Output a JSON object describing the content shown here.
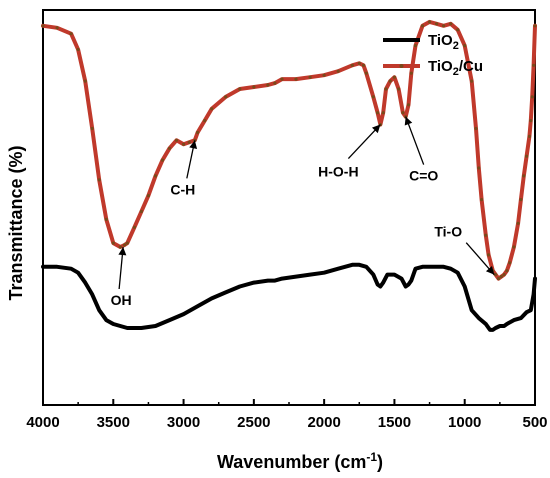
{
  "chart_data": {
    "type": "line",
    "xlabel": "Wavenumber (cm",
    "xlabel_sup": "-1",
    "xlabel_close": ")",
    "ylabel": "Transmittance (%)",
    "xlim": [
      4000,
      500
    ],
    "x_reversed": true,
    "y_ticks_shown": false,
    "xticks": [
      4000,
      3500,
      3000,
      2500,
      2000,
      1500,
      1000,
      500
    ],
    "xtick_labels": [
      "4000",
      "3500",
      "3000",
      "2500",
      "2000",
      "1500",
      "1000",
      "500"
    ],
    "grid": false,
    "legend_position": "top-right",
    "series": [
      {
        "name": "TiO",
        "name_sub": "2",
        "name_suffix": "",
        "color": "#000000",
        "marker_color": "#000000",
        "x": [
          4000,
          3900,
          3800,
          3750,
          3700,
          3650,
          3600,
          3550,
          3500,
          3450,
          3400,
          3300,
          3200,
          3100,
          3000,
          2900,
          2800,
          2700,
          2600,
          2500,
          2400,
          2350,
          2300,
          2200,
          2100,
          2000,
          1900,
          1800,
          1750,
          1700,
          1650,
          1620,
          1600,
          1580,
          1550,
          1500,
          1450,
          1420,
          1400,
          1380,
          1350,
          1300,
          1250,
          1200,
          1150,
          1100,
          1050,
          1000,
          950,
          900,
          850,
          820,
          800,
          780,
          750,
          720,
          700,
          650,
          600,
          560,
          530,
          510,
          500
        ],
        "y": [
          35,
          35,
          34.5,
          33.5,
          31,
          28,
          24,
          21.5,
          20.5,
          20,
          19.5,
          19.5,
          20,
          21.5,
          23,
          25,
          27,
          28.5,
          30,
          31,
          31.5,
          31.5,
          32,
          32.5,
          33,
          33.5,
          34.5,
          35.5,
          35.5,
          35,
          33,
          30.5,
          30,
          31,
          33,
          33,
          32,
          30,
          30.5,
          31.5,
          34.5,
          35,
          35,
          35,
          35,
          34.5,
          33.5,
          30,
          24,
          22,
          20.5,
          19,
          19,
          19.5,
          20,
          20,
          20.5,
          21.5,
          22,
          23.5,
          24,
          28,
          32
        ]
      },
      {
        "name": "TiO",
        "name_sub": "2",
        "name_suffix": "/Cu",
        "color": "#c0392b",
        "marker_color": "#7a4a1a",
        "x": [
          4000,
          3900,
          3800,
          3750,
          3700,
          3650,
          3600,
          3550,
          3500,
          3450,
          3420,
          3400,
          3350,
          3300,
          3250,
          3200,
          3150,
          3100,
          3050,
          3000,
          2960,
          2920,
          2900,
          2850,
          2800,
          2700,
          2600,
          2500,
          2400,
          2350,
          2300,
          2200,
          2100,
          2000,
          1900,
          1800,
          1750,
          1720,
          1700,
          1650,
          1620,
          1600,
          1580,
          1560,
          1530,
          1500,
          1470,
          1440,
          1420,
          1400,
          1380,
          1350,
          1300,
          1250,
          1200,
          1150,
          1100,
          1050,
          1000,
          950,
          920,
          900,
          880,
          850,
          830,
          800,
          780,
          760,
          740,
          720,
          700,
          680,
          650,
          620,
          600,
          580,
          560,
          540,
          530,
          520,
          510,
          500
        ],
        "y": [
          96,
          95.5,
          94,
          90,
          82,
          70,
          57,
          47,
          41,
          40,
          40.5,
          41,
          45,
          49,
          53,
          58,
          62,
          65,
          67,
          66,
          66.5,
          67,
          69,
          72,
          75,
          78,
          80,
          80.5,
          81,
          81.5,
          82.5,
          82.5,
          83,
          83.5,
          84.5,
          86,
          86.5,
          86,
          84,
          78,
          74,
          71,
          74,
          80,
          82,
          83,
          80,
          74,
          73,
          76,
          84,
          91,
          96,
          97,
          96.5,
          96,
          96.5,
          95,
          91,
          82,
          70,
          60,
          52,
          43,
          38,
          34,
          33,
          32,
          32.5,
          33,
          34,
          36,
          40,
          46,
          52,
          58,
          63,
          68,
          72,
          78,
          86,
          96
        ]
      }
    ],
    "annotations": [
      {
        "text": "OH",
        "target": {
          "x": 3430,
          "y": 40
        }
      },
      {
        "text": "C-H",
        "target": {
          "x": 2920,
          "y": 67
        }
      },
      {
        "text": "H-O-H",
        "target": {
          "x": 1600,
          "y": 71
        }
      },
      {
        "text": "C=O",
        "target": {
          "x": 1420,
          "y": 73
        }
      },
      {
        "text": "Ti-O",
        "target": {
          "x": 790,
          "y": 33
        }
      }
    ]
  }
}
